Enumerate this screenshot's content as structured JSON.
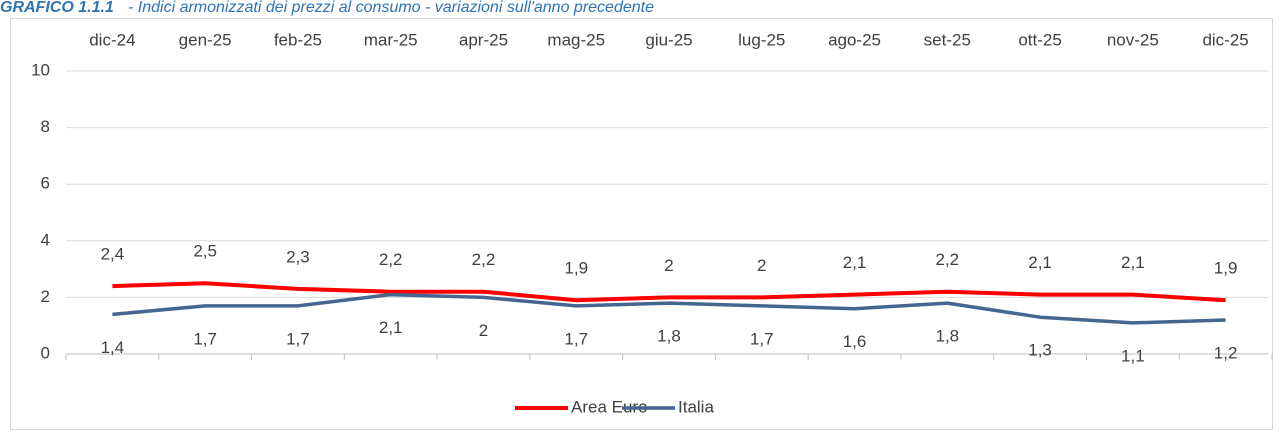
{
  "chart_data": {
    "type": "line",
    "title_label": "GRAFICO 1.1.1",
    "title": "- Indici armonizzati dei prezzi al consumo - variazioni sull'anno precedente",
    "categories": [
      "dic-24",
      "gen-25",
      "feb-25",
      "mar-25",
      "apr-25",
      "mag-25",
      "giu-25",
      "lug-25",
      "ago-25",
      "set-25",
      "ott-25",
      "nov-25",
      "dic-25"
    ],
    "series": [
      {
        "name": "Area Euro",
        "color": "#ff0000",
        "values": [
          2.4,
          2.5,
          2.3,
          2.2,
          2.2,
          1.9,
          2,
          2,
          2.1,
          2.2,
          2.1,
          2.1,
          1.9
        ],
        "value_labels": [
          "2,4",
          "2,5",
          "2,3",
          "2,2",
          "2,2",
          "1,9",
          "2",
          "2",
          "2,1",
          "2,2",
          "2,1",
          "2,1",
          "1,9"
        ]
      },
      {
        "name": "Italia",
        "color": "#44678f",
        "values": [
          1.4,
          1.7,
          1.7,
          2.1,
          2,
          1.7,
          1.8,
          1.7,
          1.6,
          1.8,
          1.3,
          1.1,
          1.2
        ],
        "value_labels": [
          "1,4",
          "1,7",
          "1,7",
          "2,1",
          "2",
          "1,7",
          "1,8",
          "1,7",
          "1,6",
          "1,8",
          "1,3",
          "1,1",
          "1,2"
        ]
      }
    ],
    "ylim": [
      0,
      10
    ],
    "yticks": [
      0,
      2,
      4,
      6,
      8,
      10
    ],
    "grid": true,
    "legend": "bottom"
  }
}
